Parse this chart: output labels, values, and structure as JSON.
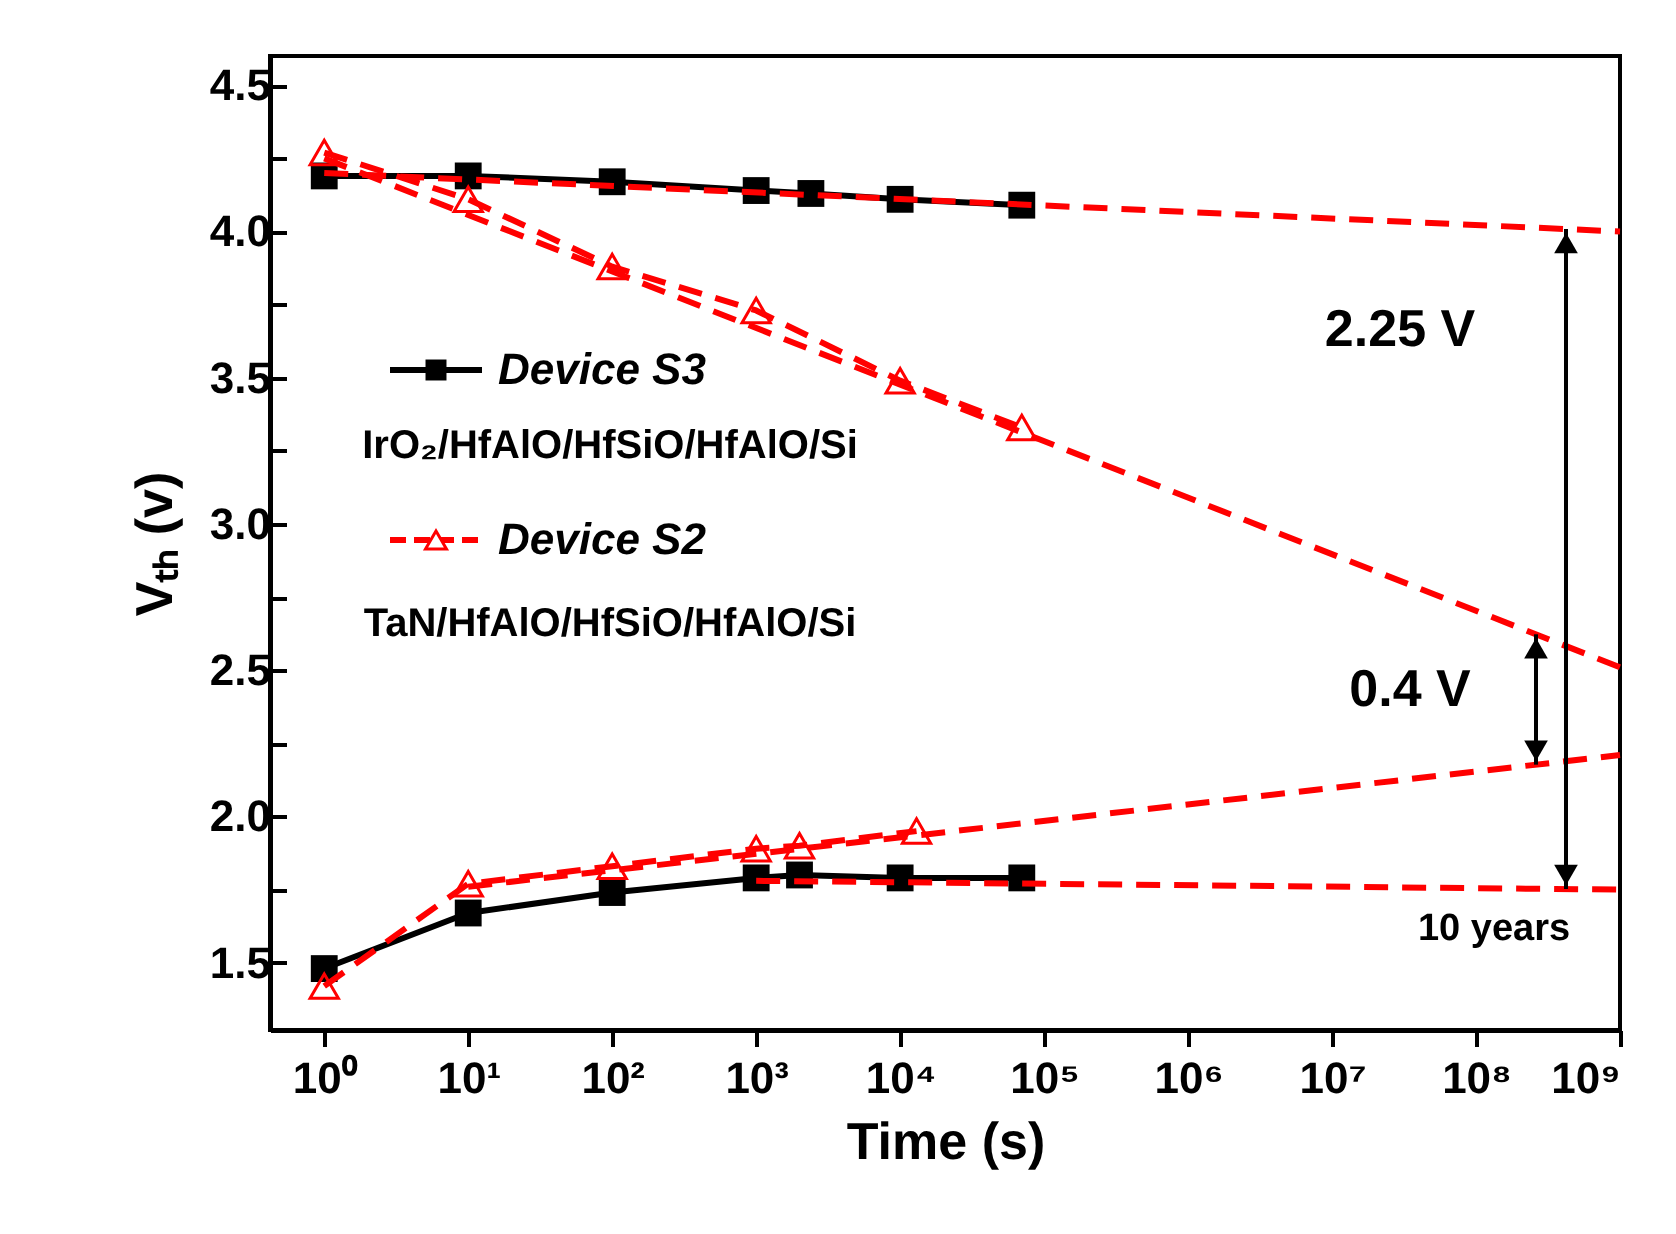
{
  "chart_data": {
    "type": "line",
    "xlabel": "Time (s)",
    "ylabel": "Vₜₕ (v)",
    "log": "x",
    "xlim": [
      0.42,
      1000000000
    ],
    "ylim": [
      1.27,
      4.6
    ],
    "xticks": [
      {
        "value": 1,
        "label": "10⁰"
      },
      {
        "value": 10,
        "label": "10¹"
      },
      {
        "value": 100,
        "label": "10²"
      },
      {
        "value": 1000,
        "label": "10³"
      },
      {
        "value": 10000,
        "label": "10⁴"
      },
      {
        "value": 100000,
        "label": "10⁵"
      },
      {
        "value": 1000000,
        "label": "10⁶"
      },
      {
        "value": 10000000,
        "label": "10⁷"
      },
      {
        "value": 100000000,
        "label": "10⁸"
      },
      {
        "value": 1000000000,
        "label": "10⁹"
      }
    ],
    "yticks": [
      {
        "value": 1.5,
        "label": "1.5"
      },
      {
        "value": 1.75,
        "label": null
      },
      {
        "value": 2,
        "label": "2.0"
      },
      {
        "value": 2.25,
        "label": null
      },
      {
        "value": 2.5,
        "label": "2.5"
      },
      {
        "value": 2.75,
        "label": null
      },
      {
        "value": 3,
        "label": "3.0"
      },
      {
        "value": 3.25,
        "label": null
      },
      {
        "value": 3.5,
        "label": "3.5"
      },
      {
        "value": 3.75,
        "label": null
      },
      {
        "value": 4,
        "label": "4.0"
      },
      {
        "value": 4.25,
        "label": null
      },
      {
        "value": 4.5,
        "label": "4.5"
      }
    ],
    "legend": "left",
    "grid": false,
    "annotations": [
      "IrO₂/HfAlO/HfSiO/HfAlO/Si",
      "TaN/HfAlO/HfSiO/HfAlO/Si",
      "2.25 V",
      "0.4 V",
      "10 years"
    ],
    "series": [
      {
        "name": "Device S3",
        "color": "#000000",
        "marker": "square",
        "line_style": "solid",
        "x": [
          1,
          10,
          100,
          1000,
          2400,
          10000,
          70000
        ],
        "values": [
          4.19,
          4.19,
          4.17,
          4.14,
          4.13,
          4.11,
          4.09
        ]
      },
      {
        "name": "Device S2",
        "color": "#ff0000",
        "marker": "triangle",
        "line_style": "dashed",
        "x": [
          1,
          10,
          100,
          1000,
          10000,
          70000
        ],
        "values": [
          4.27,
          4.11,
          3.88,
          3.73,
          3.49,
          3.33
        ]
      },
      {
        "color": "#000000",
        "marker": "square",
        "line_style": "solid",
        "x": [
          1,
          10,
          100,
          1000,
          2000,
          10000,
          70000
        ],
        "values": [
          1.48,
          1.67,
          1.74,
          1.79,
          1.8,
          1.79,
          1.79
        ]
      },
      {
        "color": "#ff0000",
        "marker": "triangle",
        "line_style": "dashed",
        "x": [
          1,
          10,
          100,
          1000,
          2000,
          13000
        ],
        "values": [
          1.42,
          1.77,
          1.83,
          1.89,
          1.9,
          1.95
        ]
      },
      {
        "color": "#ff0000",
        "marker": "none",
        "line_style": "dashed",
        "x": [
          1,
          1000000000
        ],
        "values": [
          4.2,
          4.0
        ]
      },
      {
        "color": "#ff0000",
        "marker": "none",
        "line_style": "dashed",
        "x": [
          1,
          1000000000
        ],
        "values": [
          4.25,
          2.51
        ]
      },
      {
        "color": "#ff0000",
        "marker": "none",
        "line_style": "dashed",
        "x": [
          1000,
          1000000000
        ],
        "values": [
          1.78,
          1.75
        ]
      },
      {
        "color": "#ff0000",
        "marker": "none",
        "line_style": "dashed",
        "x": [
          10,
          1000000000
        ],
        "values": [
          1.76,
          2.21
        ]
      }
    ]
  }
}
